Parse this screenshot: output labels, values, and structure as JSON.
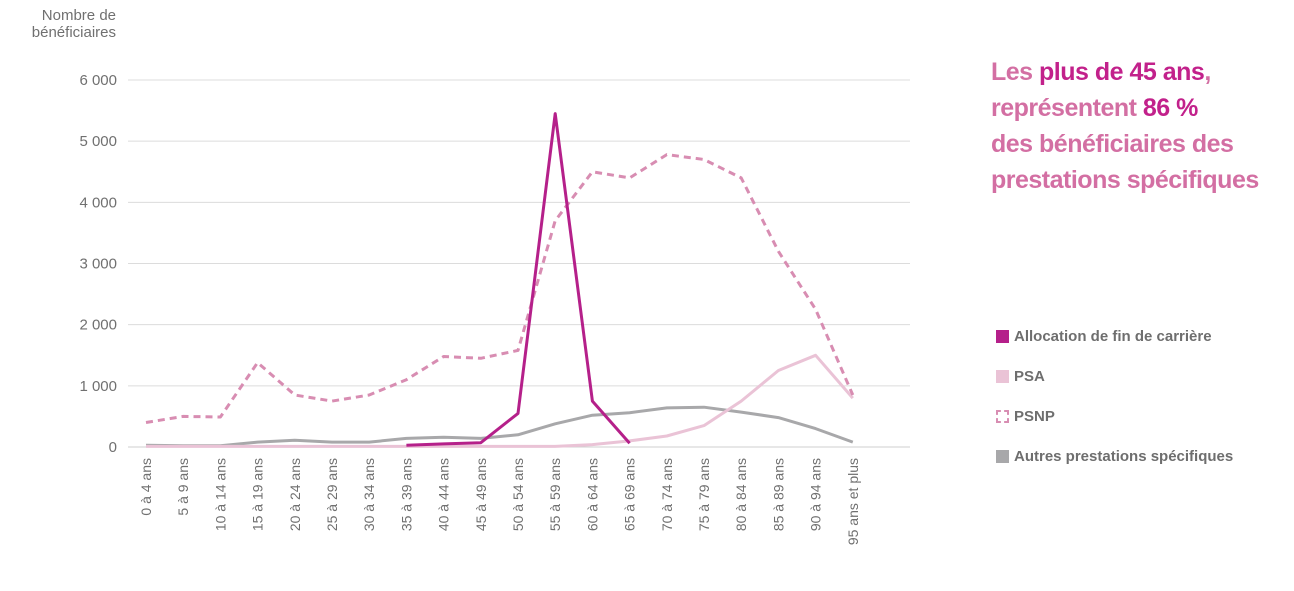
{
  "chart_data": {
    "type": "line",
    "ylabel": "Nombre de\nbénéficiaires",
    "ylim": [
      0,
      6000
    ],
    "yticks": [
      0,
      1000,
      2000,
      3000,
      4000,
      5000,
      6000
    ],
    "ytick_labels": [
      "0",
      "1 000",
      "2 000",
      "3 000",
      "4 000",
      "5 000",
      "6 000"
    ],
    "grid": "horizontal",
    "categories": [
      "0 à 4 ans",
      "5 à 9 ans",
      "10 à 14 ans",
      "15 à 19 ans",
      "20 à 24 ans",
      "25 à 29 ans",
      "30 à 34 ans",
      "35 à 39 ans",
      "40 à 44 ans",
      "45 à 49 ans",
      "50 à 54 ans",
      "55 à 59 ans",
      "60 à 64 ans",
      "65 à 69 ans",
      "70 à 74 ans",
      "75 à 79 ans",
      "80 à 84 ans",
      "85 à 89 ans",
      "90 à 94 ans",
      "95 ans et plus"
    ],
    "series": [
      {
        "name": "Allocation de fin de carrière",
        "color": "#b5208a",
        "style": "solid",
        "values": [
          null,
          null,
          null,
          null,
          null,
          null,
          null,
          30,
          50,
          70,
          550,
          5450,
          750,
          60,
          null,
          null,
          null,
          null,
          null,
          null
        ]
      },
      {
        "name": "PSA",
        "color": "#eac3d6",
        "style": "solid",
        "values": [
          10,
          10,
          10,
          10,
          10,
          10,
          10,
          10,
          10,
          10,
          10,
          10,
          40,
          100,
          180,
          350,
          750,
          1250,
          1500,
          800
        ]
      },
      {
        "name": "PSNP",
        "color": "#d88db2",
        "style": "dashed",
        "values": [
          400,
          500,
          490,
          1380,
          850,
          750,
          850,
          1100,
          1480,
          1450,
          1580,
          3700,
          4500,
          4400,
          4780,
          4700,
          4400,
          3200,
          2250,
          850
        ]
      },
      {
        "name": "Autres prestations spécifiques",
        "color": "#a8a8aa",
        "style": "solid",
        "values": [
          30,
          20,
          20,
          80,
          110,
          80,
          80,
          140,
          160,
          140,
          200,
          380,
          520,
          560,
          640,
          650,
          570,
          480,
          300,
          80
        ]
      }
    ],
    "legend_position": "right"
  },
  "headline": {
    "part1": "Les ",
    "part2": "plus de 45 ans",
    "part3": ",",
    "part4": "représentent ",
    "part5": "86 %",
    "part6": "des bénéficiaires des",
    "part7": "prestations spécifiques"
  },
  "legend": [
    {
      "label": "Allocation de fin de carrière",
      "color": "#b5208a",
      "style": "solid"
    },
    {
      "label": "PSA",
      "color": "#eac3d6",
      "style": "solid"
    },
    {
      "label": "PSNP",
      "color": "#d88db2",
      "style": "dashed"
    },
    {
      "label": "Autres prestations spécifiques",
      "color": "#a8a8aa",
      "style": "solid"
    }
  ]
}
